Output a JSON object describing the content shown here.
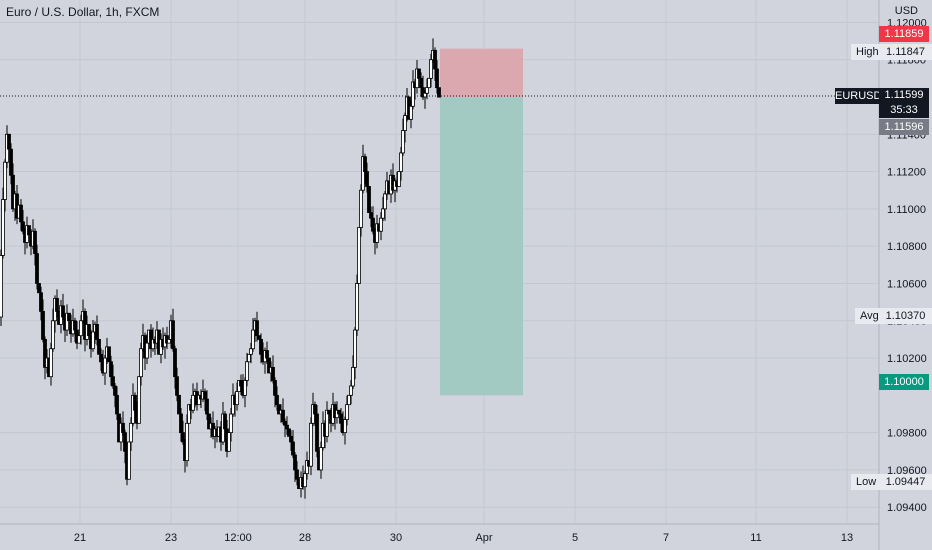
{
  "header": {
    "symbol_title": "Euro / U.S. Dollar, 1h, FXCM",
    "currency": "USD"
  },
  "price_axis": {
    "ticks": [
      "1.12000",
      "1.11800",
      "1.11400",
      "1.11200",
      "1.11000",
      "1.10800",
      "1.10600",
      "1.10400",
      "1.10200",
      "1.09800",
      "1.09600",
      "1.09400"
    ]
  },
  "time_axis": {
    "ticks": [
      "21",
      "23",
      "12:00",
      "28",
      "30",
      "Apr",
      "5",
      "7",
      "11",
      "13"
    ]
  },
  "price_labels": {
    "target_price": "1.11859",
    "high_label": "High",
    "high_value": "1.11847",
    "symbol": "EURUSD",
    "current_price": "1.11599",
    "countdown": "35:33",
    "bid_price": "1.11596",
    "avg_label": "Avg",
    "avg_value": "1.10370",
    "stop_price": "1.10000",
    "low_label": "Low",
    "low_value": "1.09447"
  },
  "colors": {
    "background": "#d1d4dc",
    "target_tag": "#f23645",
    "stop_tag": "#089981",
    "bid_tag": "#787b86",
    "current_tag": "#131722",
    "profit_zone": "#9cc9c0",
    "loss_zone": "#dda3ab"
  },
  "chart_data": {
    "type": "candlestick",
    "series_points": [
      [
        0,
        1.1042
      ],
      [
        2,
        1.1075
      ],
      [
        4,
        1.1105
      ],
      [
        6,
        1.1125
      ],
      [
        8,
        1.114
      ],
      [
        10,
        1.1132
      ],
      [
        12,
        1.1118
      ],
      [
        14,
        1.11
      ],
      [
        16,
        1.1108
      ],
      [
        18,
        1.1095
      ],
      [
        20,
        1.1102
      ],
      [
        22,
        1.1093
      ],
      [
        24,
        1.1088
      ],
      [
        26,
        1.1082
      ],
      [
        28,
        1.1091
      ],
      [
        30,
        1.1086
      ],
      [
        32,
        1.108
      ],
      [
        34,
        1.1088
      ],
      [
        36,
        1.1076
      ],
      [
        38,
        1.106
      ],
      [
        40,
        1.1055
      ],
      [
        42,
        1.1045
      ],
      [
        44,
        1.103
      ],
      [
        46,
        1.1015
      ],
      [
        48,
        1.102
      ],
      [
        50,
        1.101
      ],
      [
        52,
        1.1025
      ],
      [
        54,
        1.104
      ],
      [
        56,
        1.1052
      ],
      [
        58,
        1.1045
      ],
      [
        60,
        1.1038
      ],
      [
        62,
        1.1048
      ],
      [
        64,
        1.1042
      ],
      [
        66,
        1.1035
      ],
      [
        68,
        1.1044
      ],
      [
        70,
        1.104
      ],
      [
        72,
        1.1033
      ],
      [
        74,
        1.104
      ],
      [
        76,
        1.1035
      ],
      [
        78,
        1.1028
      ],
      [
        80,
        1.1032
      ],
      [
        82,
        1.104
      ],
      [
        84,
        1.1045
      ],
      [
        86,
        1.103
      ],
      [
        88,
        1.1038
      ],
      [
        90,
        1.1032
      ],
      [
        92,
        1.1025
      ],
      [
        94,
        1.1034
      ],
      [
        96,
        1.1038
      ],
      [
        98,
        1.103
      ],
      [
        100,
        1.1022
      ],
      [
        102,
        1.1018
      ],
      [
        104,
        1.1012
      ],
      [
        106,
        1.102
      ],
      [
        108,
        1.1026
      ],
      [
        110,
        1.1018
      ],
      [
        112,
        1.101
      ],
      [
        114,
        1.1005
      ],
      [
        116,
        1.1
      ],
      [
        118,
        1.099
      ],
      [
        120,
        1.0975
      ],
      [
        122,
        1.0985
      ],
      [
        124,
        1.098
      ],
      [
        126,
        1.097
      ],
      [
        128,
        1.0955
      ],
      [
        130,
        1.0975
      ],
      [
        132,
        1.0985
      ],
      [
        134,
        1.1
      ],
      [
        136,
        1.0992
      ],
      [
        138,
        1.0985
      ],
      [
        140,
        1.101
      ],
      [
        142,
        1.1025
      ],
      [
        144,
        1.1032
      ],
      [
        146,
        1.102
      ],
      [
        148,
        1.1028
      ],
      [
        150,
        1.1035
      ],
      [
        152,
        1.1025
      ],
      [
        154,
        1.103
      ],
      [
        156,
        1.1028
      ],
      [
        158,
        1.1035
      ],
      [
        160,
        1.1022
      ],
      [
        162,
        1.103
      ],
      [
        164,
        1.1026
      ],
      [
        166,
        1.1032
      ],
      [
        168,
        1.1028
      ],
      [
        170,
        1.103
      ],
      [
        172,
        1.104
      ],
      [
        174,
        1.1025
      ],
      [
        176,
        1.101
      ],
      [
        178,
        1.1
      ],
      [
        180,
        1.099
      ],
      [
        182,
        1.098
      ],
      [
        184,
        1.0975
      ],
      [
        186,
        1.0965
      ],
      [
        188,
        1.0985
      ],
      [
        190,
        1.0995
      ],
      [
        192,
        1.0992
      ],
      [
        194,
        1.1
      ],
      [
        196,
        1.1002
      ],
      [
        198,
        1.0995
      ],
      [
        200,
        1.1
      ],
      [
        202,
        1.0998
      ],
      [
        204,
        1.1002
      ],
      [
        206,
        1.0998
      ],
      [
        208,
        1.099
      ],
      [
        210,
        1.0982
      ],
      [
        212,
        1.0985
      ],
      [
        214,
        1.0978
      ],
      [
        216,
        1.0982
      ],
      [
        218,
        1.0978
      ],
      [
        220,
        1.0983
      ],
      [
        222,
        1.0975
      ],
      [
        224,
        1.099
      ],
      [
        226,
        1.0982
      ],
      [
        228,
        1.097
      ],
      [
        230,
        1.098
      ],
      [
        232,
        1.099
      ],
      [
        234,
        1.1
      ],
      [
        236,
        1.0995
      ],
      [
        238,
        1.1002
      ],
      [
        240,
        1.1008
      ],
      [
        242,
        1.1005
      ],
      [
        244,
        1.1
      ],
      [
        246,
        1.1008
      ],
      [
        248,
        1.1018
      ],
      [
        250,
        1.1022
      ],
      [
        252,
        1.1025
      ],
      [
        254,
        1.1035
      ],
      [
        256,
        1.104
      ],
      [
        258,
        1.1032
      ],
      [
        260,
        1.103
      ],
      [
        262,
        1.1022
      ],
      [
        264,
        1.1018
      ],
      [
        266,
        1.1024
      ],
      [
        268,
        1.102
      ],
      [
        270,
        1.1012
      ],
      [
        272,
        1.1015
      ],
      [
        274,
        1.1008
      ],
      [
        276,
        1.1
      ],
      [
        278,
        1.0995
      ],
      [
        280,
        1.099
      ],
      [
        282,
        1.0992
      ],
      [
        284,
        1.0986
      ],
      [
        286,
        1.0984
      ],
      [
        288,
        1.0982
      ],
      [
        290,
        1.0978
      ],
      [
        292,
        1.0975
      ],
      [
        294,
        1.0968
      ],
      [
        296,
        1.096
      ],
      [
        298,
        1.0955
      ],
      [
        300,
        1.095
      ],
      [
        302,
        1.0956
      ],
      [
        304,
        1.0951
      ],
      [
        306,
        1.0958
      ],
      [
        308,
        1.0965
      ],
      [
        310,
        1.0962
      ],
      [
        312,
        1.0985
      ],
      [
        314,
        1.0995
      ],
      [
        316,
        1.099
      ],
      [
        318,
        1.097
      ],
      [
        320,
        1.096
      ],
      [
        322,
        1.0972
      ],
      [
        324,
        1.0985
      ],
      [
        326,
        1.0978
      ],
      [
        328,
        1.0992
      ],
      [
        330,
        1.099
      ],
      [
        332,
        1.0985
      ],
      [
        334,
        1.0995
      ],
      [
        336,
        1.0988
      ],
      [
        338,
        1.0992
      ],
      [
        340,
        1.099
      ],
      [
        342,
        1.0985
      ],
      [
        344,
        1.098
      ],
      [
        346,
        1.0987
      ],
      [
        348,
        1.0995
      ],
      [
        350,
        1.1
      ],
      [
        352,
        1.1005
      ],
      [
        354,
        1.1015
      ],
      [
        356,
        1.1035
      ],
      [
        358,
        1.106
      ],
      [
        360,
        1.109
      ],
      [
        362,
        1.111
      ],
      [
        364,
        1.1128
      ],
      [
        366,
        1.112
      ],
      [
        368,
        1.1112
      ],
      [
        370,
        1.1098
      ],
      [
        372,
        1.1095
      ],
      [
        374,
        1.1088
      ],
      [
        376,
        1.1082
      ],
      [
        378,
        1.1092
      ],
      [
        380,
        1.1088
      ],
      [
        382,
        1.1095
      ],
      [
        384,
        1.11
      ],
      [
        386,
        1.1108
      ],
      [
        388,
        1.1115
      ],
      [
        390,
        1.1108
      ],
      [
        392,
        1.1118
      ],
      [
        394,
        1.111
      ],
      [
        396,
        1.1115
      ],
      [
        398,
        1.1112
      ],
      [
        400,
        1.112
      ],
      [
        402,
        1.113
      ],
      [
        404,
        1.1142
      ],
      [
        406,
        1.115
      ],
      [
        408,
        1.116
      ],
      [
        410,
        1.1148
      ],
      [
        412,
        1.1155
      ],
      [
        414,
        1.1168
      ],
      [
        416,
        1.1165
      ],
      [
        418,
        1.1175
      ],
      [
        420,
        1.117
      ],
      [
        422,
        1.1165
      ],
      [
        424,
        1.116
      ],
      [
        426,
        1.1162
      ],
      [
        428,
        1.1165
      ],
      [
        430,
        1.117
      ],
      [
        432,
        1.118
      ],
      [
        434,
        1.1185
      ],
      [
        436,
        1.1175
      ],
      [
        438,
        1.1165
      ],
      [
        440,
        1.11599
      ]
    ],
    "position": {
      "entry": 1.11599,
      "target": 1.11859,
      "stop": 1.1
    },
    "x_axis_ticks": [
      "21",
      "23",
      "12:00",
      "28",
      "30",
      "Apr",
      "5",
      "7",
      "11",
      "13"
    ],
    "y_axis_ticks": [
      1.12,
      1.118,
      1.114,
      1.112,
      1.11,
      1.108,
      1.106,
      1.104,
      1.102,
      1.098,
      1.096,
      1.094
    ],
    "ylim": [
      1.0931,
      1.1212
    ],
    "grid": true
  }
}
